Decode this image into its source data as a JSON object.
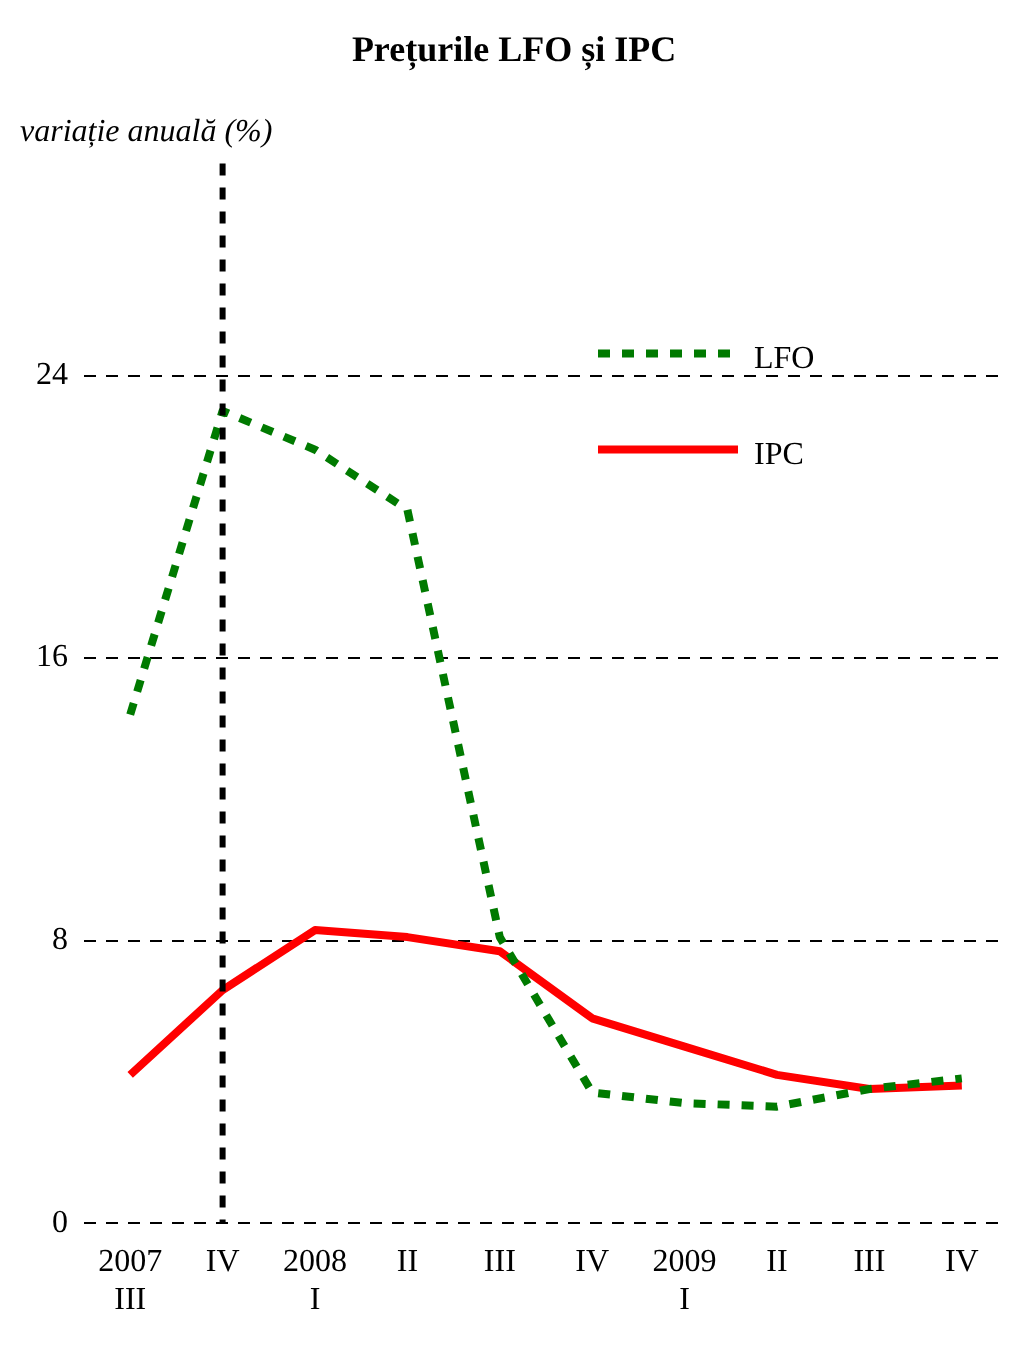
{
  "chart_data": {
    "type": "line",
    "title": "Prețurile LFO și IPC",
    "subtitle": "variație anuală (%)",
    "categories": [
      "2007\nIII",
      "IV",
      "2008\nI",
      "II",
      "III",
      "IV",
      "2009\nI",
      "II",
      "III",
      "IV"
    ],
    "series": [
      {
        "name": "LFO",
        "color": "#007a00",
        "line_style": "dashed",
        "values": [
          14.4,
          23.0,
          21.9,
          20.2,
          8.1,
          3.7,
          3.4,
          3.3,
          3.8,
          4.1
        ]
      },
      {
        "name": "IPC",
        "color": "#ff0000",
        "line_style": "solid",
        "values": [
          4.2,
          6.6,
          8.3,
          8.1,
          7.7,
          5.8,
          5.0,
          4.2,
          3.8,
          3.9
        ]
      }
    ],
    "ylim": [
      0,
      30
    ],
    "yticks": [
      0,
      8,
      16,
      24
    ],
    "grid": "y",
    "legend": "top right",
    "marker": "none",
    "ref_lines": [
      {
        "axis": "x",
        "value": "IV",
        "color": "#000000",
        "line_style": "dashed"
      }
    ]
  }
}
